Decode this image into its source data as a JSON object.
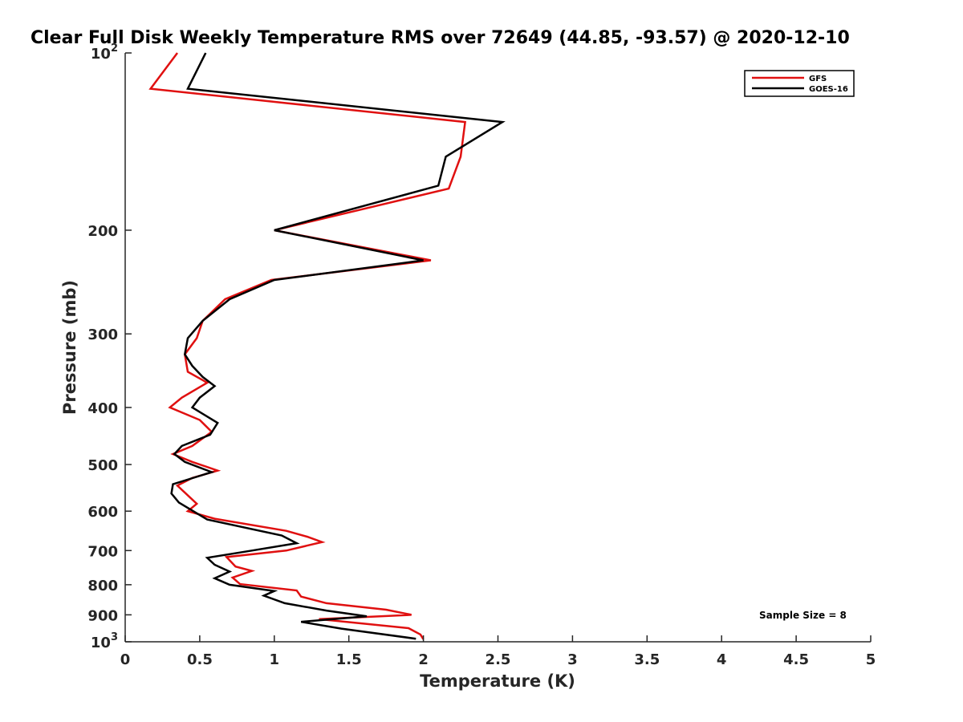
{
  "chart_data": {
    "type": "line",
    "title": "Clear Full Disk Weekly Temperature RMS over 72649 (44.85, -93.57) @ 2020-12-10",
    "xlabel": "Temperature (K)",
    "ylabel": "Pressure (mb)",
    "xlim": [
      0,
      5
    ],
    "ylim": [
      100,
      1000
    ],
    "yscale": "log",
    "y_reversed": true,
    "x_ticks": [
      "0",
      "0.5",
      "1",
      "1.5",
      "2",
      "2.5",
      "3",
      "3.5",
      "4",
      "4.5",
      "5"
    ],
    "y_ticks": [
      {
        "value": 100,
        "base": "10",
        "exp": "2"
      },
      {
        "value": 200,
        "label": "200"
      },
      {
        "value": 300,
        "label": "300"
      },
      {
        "value": 400,
        "label": "400"
      },
      {
        "value": 500,
        "label": "500"
      },
      {
        "value": 600,
        "label": "600"
      },
      {
        "value": 700,
        "label": "700"
      },
      {
        "value": 800,
        "label": "800"
      },
      {
        "value": 900,
        "label": "900"
      },
      {
        "value": 1000,
        "base": "10",
        "exp": "3"
      }
    ],
    "grid": false,
    "legend_position": "top-right",
    "annotation": "Sample Size = 8",
    "series": [
      {
        "name": "GFS",
        "color": "#e01010",
        "points": [
          {
            "x": 0.35,
            "y": 100
          },
          {
            "x": 0.17,
            "y": 115
          },
          {
            "x": 2.28,
            "y": 131
          },
          {
            "x": 2.25,
            "y": 150
          },
          {
            "x": 2.17,
            "y": 170
          },
          {
            "x": 1.0,
            "y": 200
          },
          {
            "x": 2.05,
            "y": 225
          },
          {
            "x": 0.98,
            "y": 243
          },
          {
            "x": 0.67,
            "y": 262
          },
          {
            "x": 0.52,
            "y": 285
          },
          {
            "x": 0.48,
            "y": 305
          },
          {
            "x": 0.4,
            "y": 325
          },
          {
            "x": 0.42,
            "y": 348
          },
          {
            "x": 0.55,
            "y": 363
          },
          {
            "x": 0.38,
            "y": 385
          },
          {
            "x": 0.3,
            "y": 400
          },
          {
            "x": 0.5,
            "y": 420
          },
          {
            "x": 0.58,
            "y": 440
          },
          {
            "x": 0.45,
            "y": 465
          },
          {
            "x": 0.32,
            "y": 480
          },
          {
            "x": 0.45,
            "y": 495
          },
          {
            "x": 0.62,
            "y": 512
          },
          {
            "x": 0.45,
            "y": 527
          },
          {
            "x": 0.35,
            "y": 543
          },
          {
            "x": 0.48,
            "y": 583
          },
          {
            "x": 0.42,
            "y": 600
          },
          {
            "x": 0.6,
            "y": 618
          },
          {
            "x": 1.08,
            "y": 648
          },
          {
            "x": 1.22,
            "y": 663
          },
          {
            "x": 1.32,
            "y": 677
          },
          {
            "x": 1.08,
            "y": 700
          },
          {
            "x": 0.68,
            "y": 718
          },
          {
            "x": 0.74,
            "y": 745
          },
          {
            "x": 0.85,
            "y": 758
          },
          {
            "x": 0.72,
            "y": 778
          },
          {
            "x": 0.77,
            "y": 798
          },
          {
            "x": 1.15,
            "y": 818
          },
          {
            "x": 1.18,
            "y": 838
          },
          {
            "x": 1.35,
            "y": 860
          },
          {
            "x": 1.75,
            "y": 882
          },
          {
            "x": 1.92,
            "y": 900
          },
          {
            "x": 1.3,
            "y": 915
          },
          {
            "x": 1.9,
            "y": 948
          },
          {
            "x": 1.98,
            "y": 972
          },
          {
            "x": 2.0,
            "y": 990
          }
        ]
      },
      {
        "name": "GOES-16",
        "color": "#000000",
        "points": [
          {
            "x": 0.54,
            "y": 100
          },
          {
            "x": 0.42,
            "y": 115
          },
          {
            "x": 2.53,
            "y": 131
          },
          {
            "x": 2.15,
            "y": 150
          },
          {
            "x": 2.1,
            "y": 168
          },
          {
            "x": 1.0,
            "y": 200
          },
          {
            "x": 2.0,
            "y": 225
          },
          {
            "x": 1.0,
            "y": 243
          },
          {
            "x": 0.7,
            "y": 262
          },
          {
            "x": 0.52,
            "y": 285
          },
          {
            "x": 0.42,
            "y": 305
          },
          {
            "x": 0.4,
            "y": 325
          },
          {
            "x": 0.45,
            "y": 340
          },
          {
            "x": 0.52,
            "y": 355
          },
          {
            "x": 0.6,
            "y": 368
          },
          {
            "x": 0.5,
            "y": 385
          },
          {
            "x": 0.45,
            "y": 400
          },
          {
            "x": 0.62,
            "y": 425
          },
          {
            "x": 0.57,
            "y": 445
          },
          {
            "x": 0.38,
            "y": 465
          },
          {
            "x": 0.33,
            "y": 480
          },
          {
            "x": 0.4,
            "y": 495
          },
          {
            "x": 0.58,
            "y": 515
          },
          {
            "x": 0.32,
            "y": 540
          },
          {
            "x": 0.31,
            "y": 560
          },
          {
            "x": 0.36,
            "y": 580
          },
          {
            "x": 0.55,
            "y": 620
          },
          {
            "x": 1.05,
            "y": 660
          },
          {
            "x": 1.15,
            "y": 680
          },
          {
            "x": 0.85,
            "y": 700
          },
          {
            "x": 0.55,
            "y": 720
          },
          {
            "x": 0.6,
            "y": 740
          },
          {
            "x": 0.7,
            "y": 760
          },
          {
            "x": 0.6,
            "y": 780
          },
          {
            "x": 0.7,
            "y": 800
          },
          {
            "x": 1.0,
            "y": 820
          },
          {
            "x": 0.93,
            "y": 835
          },
          {
            "x": 1.07,
            "y": 860
          },
          {
            "x": 1.35,
            "y": 885
          },
          {
            "x": 1.62,
            "y": 905
          },
          {
            "x": 1.18,
            "y": 925
          },
          {
            "x": 1.45,
            "y": 950
          },
          {
            "x": 1.95,
            "y": 988
          }
        ]
      }
    ]
  }
}
